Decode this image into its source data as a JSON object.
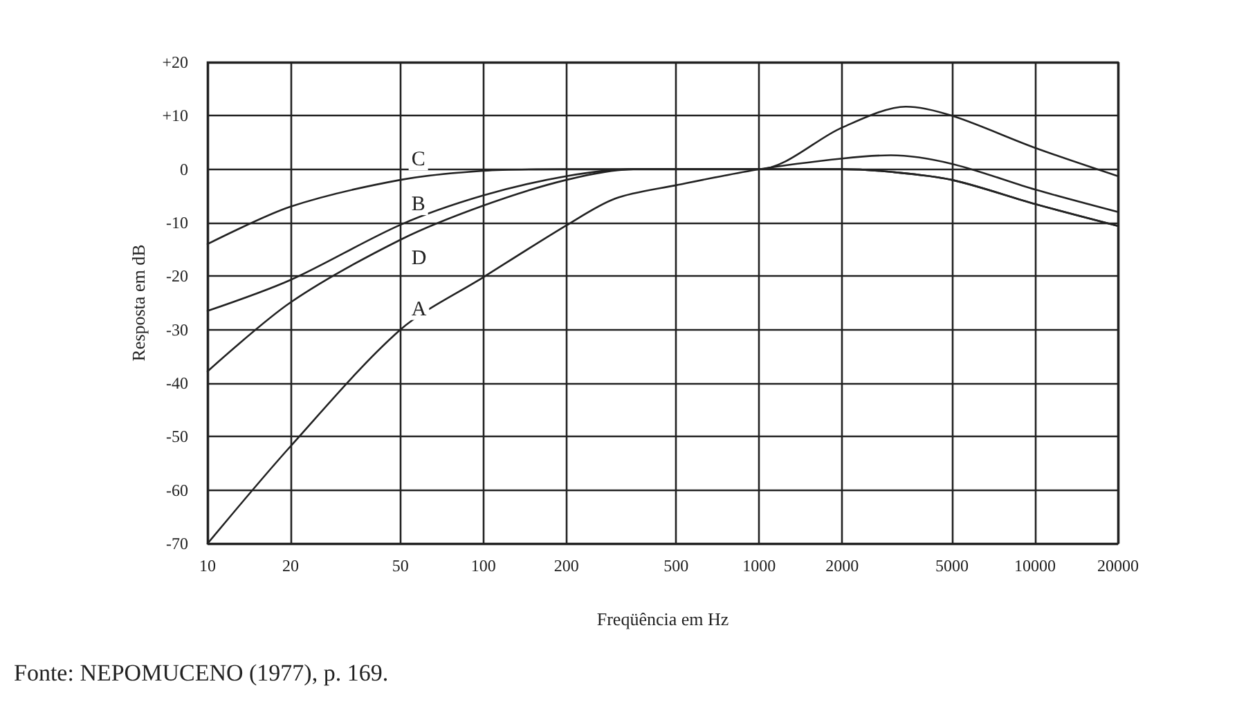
{
  "chart_data": {
    "type": "line",
    "xlabel": "Freqüência em Hz",
    "ylabel": "Resposta em dB",
    "annotations": [
      "Fonte: NEPOMUCENO (1977), p. 169."
    ],
    "log": "x",
    "grid": true,
    "legend": false,
    "marker": "none",
    "line_style": "solid",
    "xlim": [
      10,
      20000
    ],
    "xticks": [
      10,
      20,
      50,
      100,
      200,
      500,
      1000,
      2000,
      5000,
      10000,
      20000
    ],
    "ylim": [
      -70,
      20
    ],
    "yticks": [
      {
        "value": -70,
        "label": "-70"
      },
      {
        "value": -60,
        "label": "-60"
      },
      {
        "value": -50,
        "label": "-50"
      },
      {
        "value": -40,
        "label": "-40"
      },
      {
        "value": -30,
        "label": "-30"
      },
      {
        "value": -20,
        "label": "-20"
      },
      {
        "value": -10,
        "label": "-10"
      },
      0,
      {
        "value": 10,
        "label": "+10"
      },
      {
        "value": 20,
        "label": "+20"
      }
    ],
    "series": [
      {
        "name": "C",
        "color": "#222222",
        "x": [
          10,
          20,
          50,
          100,
          200,
          500,
          1000,
          2000,
          3000,
          5000,
          10000,
          20000
        ],
        "values": [
          -14,
          -7,
          -2,
          -0.3,
          0,
          0,
          0,
          0,
          -0.5,
          -2,
          -6.5,
          -10.6
        ]
      },
      {
        "name": "B",
        "color": "#222222",
        "x": [
          10,
          20,
          50,
          100,
          200,
          350,
          500,
          1000,
          2000,
          3000,
          5000,
          10000,
          20000
        ],
        "values": [
          -26.5,
          -20.7,
          -10.4,
          -4.9,
          -1.3,
          0,
          0,
          0,
          0,
          -0.5,
          -2,
          -6.5,
          -10.6
        ]
      },
      {
        "name": "D",
        "color": "#222222",
        "x": [
          10,
          20,
          50,
          100,
          200,
          350,
          500,
          1000,
          2000,
          3400,
          5000,
          10000,
          20000
        ],
        "values": [
          -37.8,
          -24.9,
          -13.2,
          -6.8,
          -2,
          0,
          0,
          0,
          7.8,
          11.7,
          10,
          4,
          -1.3
        ]
      },
      {
        "name": "A",
        "color": "#222222",
        "x": [
          10,
          20,
          50,
          100,
          200,
          300,
          500,
          1000,
          2000,
          3000,
          5000,
          10000,
          20000
        ],
        "values": [
          -70,
          -51.8,
          -30,
          -20.2,
          -10.5,
          -5.5,
          -3,
          0,
          2,
          2.6,
          1,
          -3.8,
          -8
        ]
      }
    ]
  }
}
